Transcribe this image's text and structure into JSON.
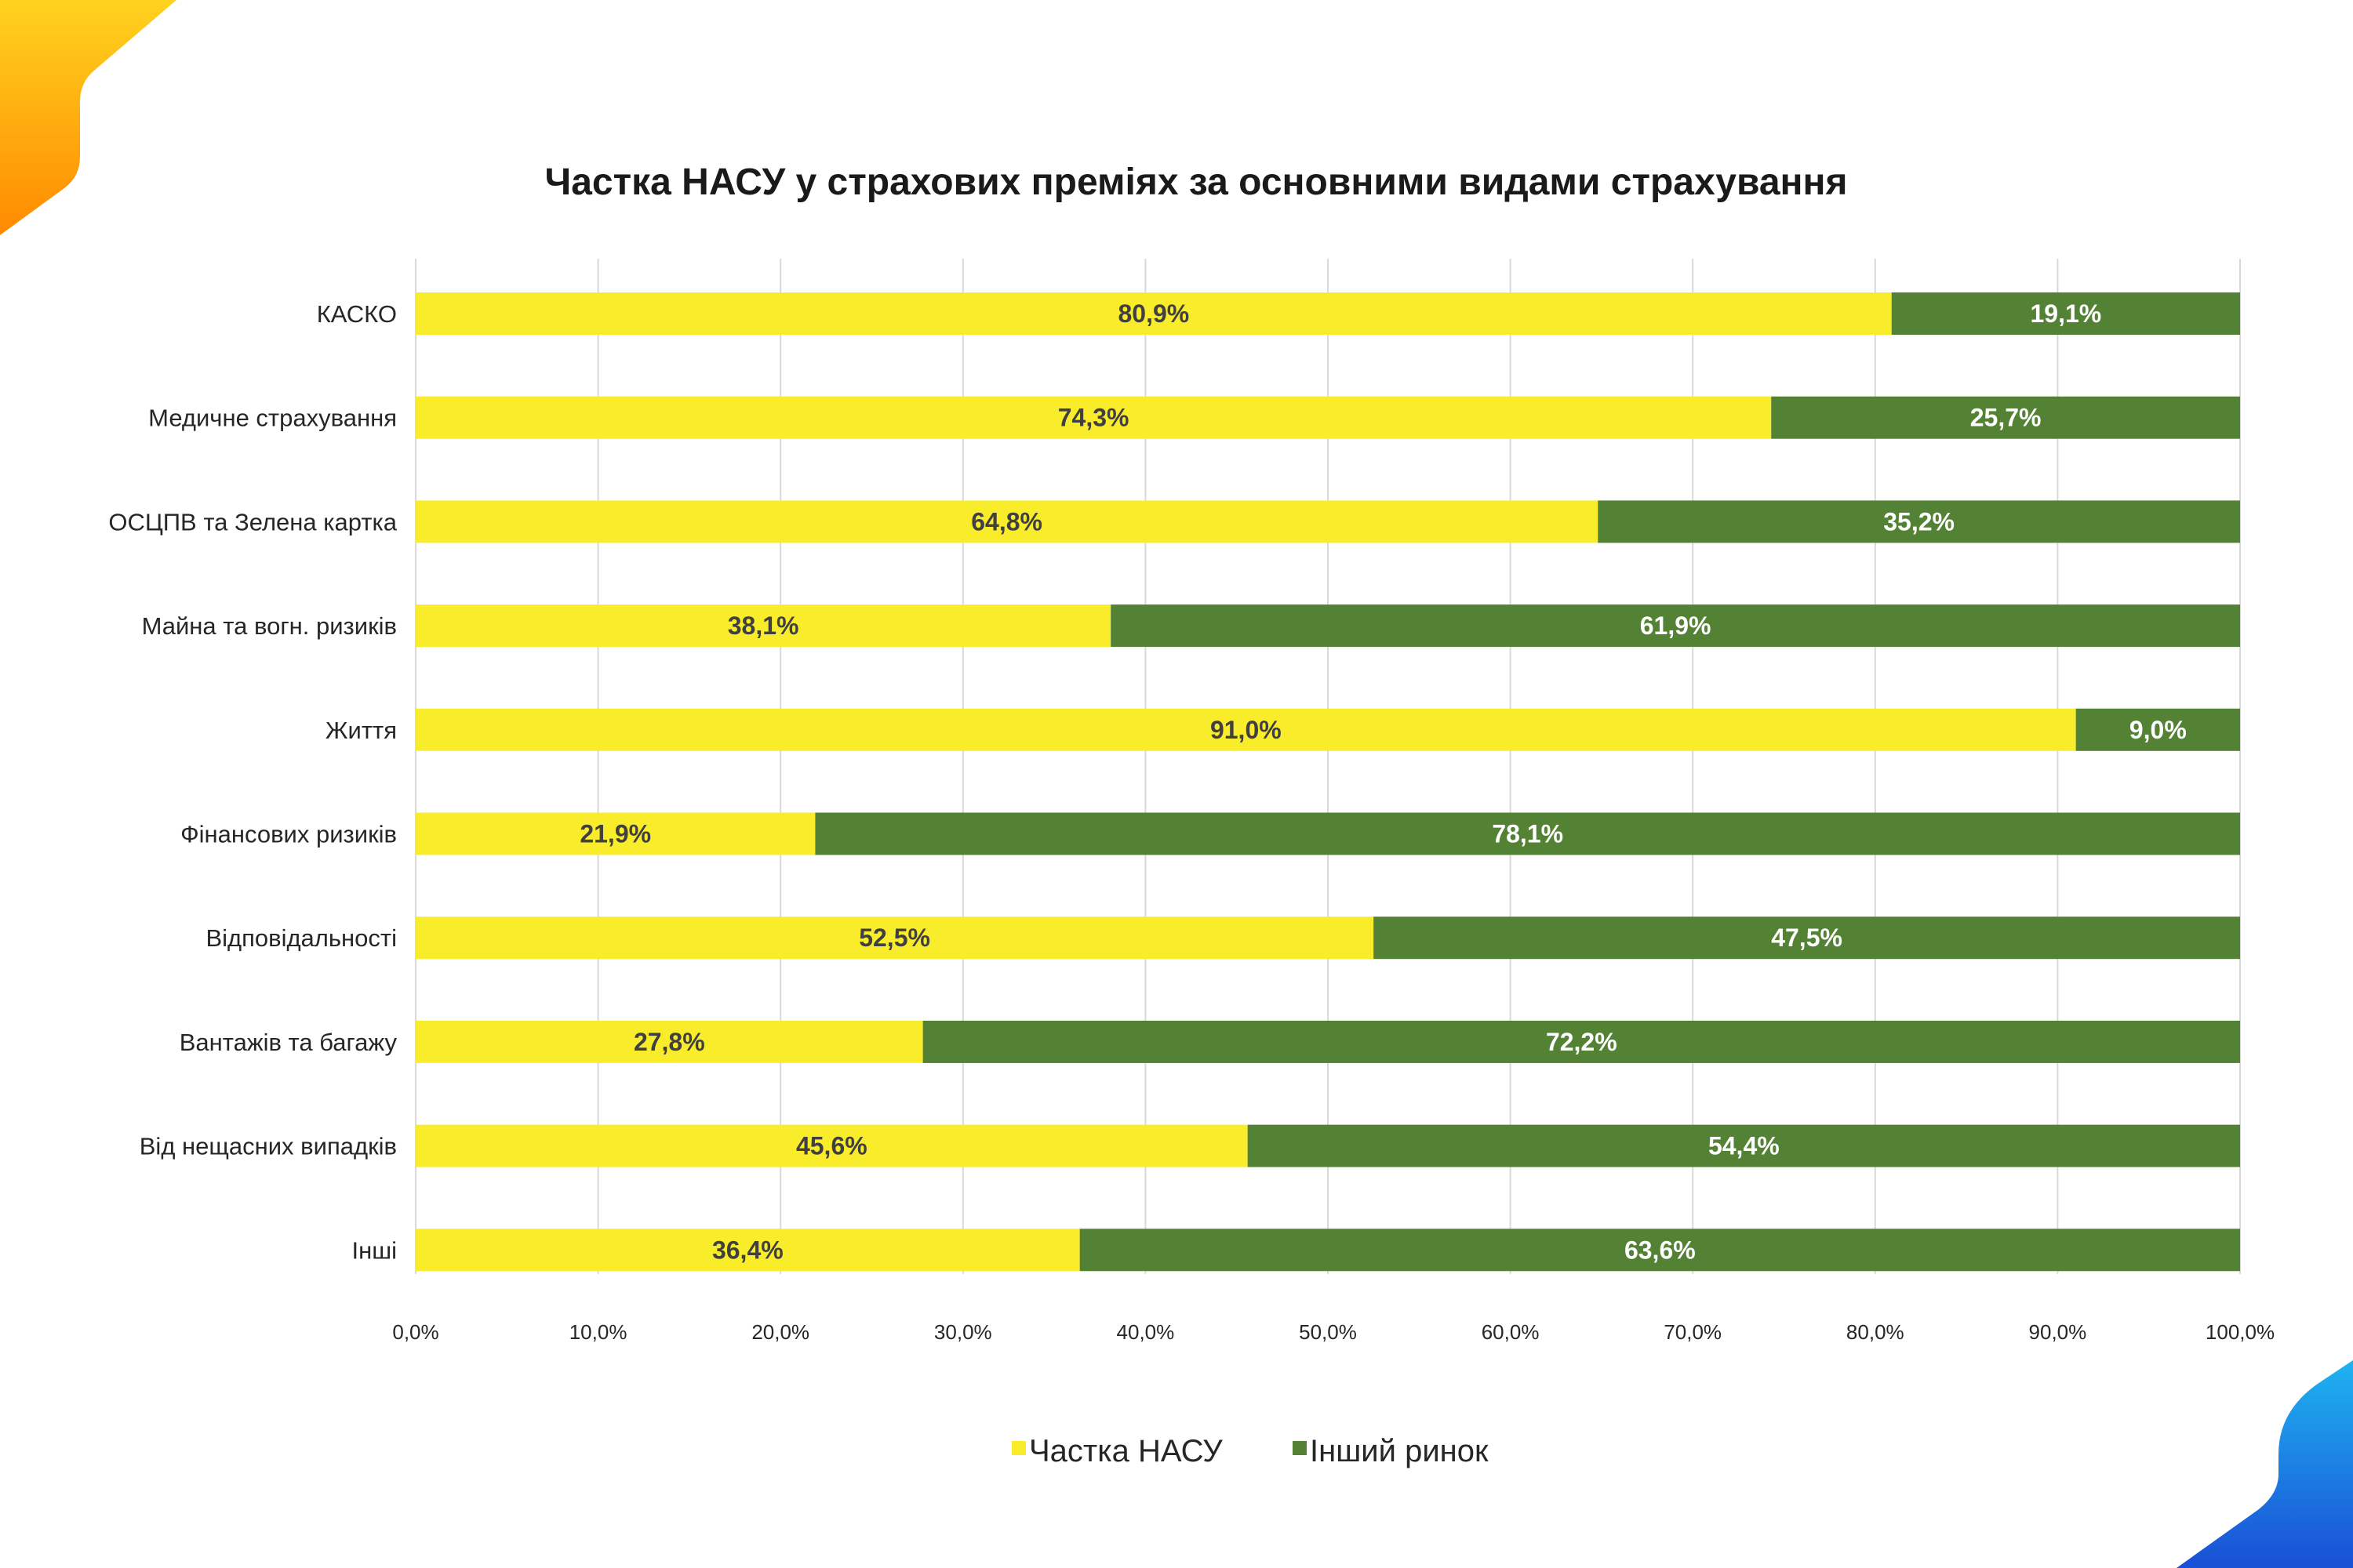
{
  "colors": {
    "corner_top_start": "#ffd21f",
    "corner_top_end": "#ff8a00",
    "corner_bottom_start": "#1fb3f0",
    "corner_bottom_end": "#1a4fd6",
    "grid": "#d9d9d9",
    "axis": "#bfbfbf"
  },
  "legend": [
    {
      "label": "Частка НАСУ",
      "color": "#f9ed2b",
      "icon": "square-marker-icon"
    },
    {
      "label": "Інший  ринок",
      "color": "#538234",
      "icon": "square-marker-icon"
    }
  ],
  "chart_data": {
    "type": "bar",
    "orientation": "horizontal",
    "stacked": true,
    "title": "Частка НАСУ у страхових преміях за основними видами страхування",
    "xlabel": "",
    "ylabel": "",
    "xlim": [
      0,
      100
    ],
    "grid": true,
    "legend_position": "bottom",
    "categories": [
      "КАСКО",
      "Медичне страхування",
      "ОСЦПВ та Зелена картка",
      "Майна та вогн. ризиків",
      "Життя",
      "Фінансових ризиків",
      "Відповідальності",
      "Вантажів та багажу",
      "Від нещасних випадків",
      "Інші"
    ],
    "series": [
      {
        "name": "Частка НАСУ",
        "color": "#f9ed2b",
        "label_color": "#404040",
        "values": [
          80.9,
          74.3,
          64.8,
          38.1,
          91.0,
          21.9,
          52.5,
          27.8,
          45.6,
          36.4
        ],
        "data_labels": [
          "80,9%",
          "74,3%",
          "64,8%",
          "38,1%",
          "91,0%",
          "21,9%",
          "52,5%",
          "27,8%",
          "45,6%",
          "36,4%"
        ]
      },
      {
        "name": "Інший  ринок",
        "color": "#538234",
        "label_color": "#ffffff",
        "values": [
          19.1,
          25.7,
          35.2,
          61.9,
          9.0,
          78.1,
          47.5,
          72.2,
          54.4,
          63.6
        ],
        "data_labels": [
          "19,1%",
          "25,7%",
          "35,2%",
          "61,9%",
          "9,0%",
          "78,1%",
          "47,5%",
          "72,2%",
          "54,4%",
          "63,6%"
        ]
      }
    ],
    "x_ticks": [
      0,
      10,
      20,
      30,
      40,
      50,
      60,
      70,
      80,
      90,
      100
    ],
    "x_tick_labels": [
      "0,0%",
      "10,0%",
      "20,0%",
      "30,0%",
      "40,0%",
      "50,0%",
      "60,0%",
      "70,0%",
      "80,0%",
      "90,0%",
      "100,0%"
    ]
  }
}
